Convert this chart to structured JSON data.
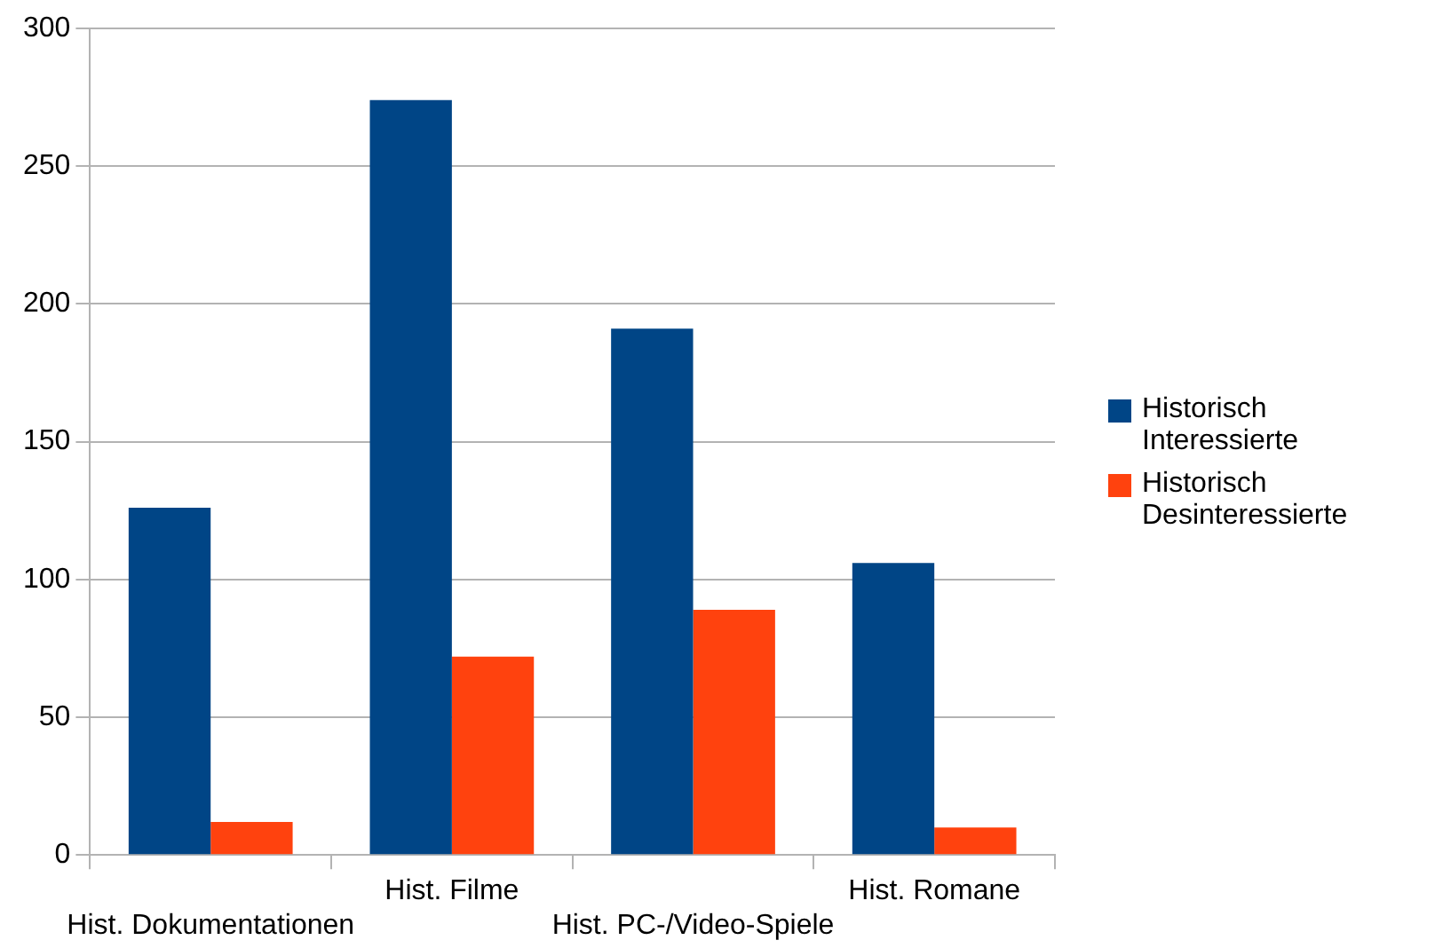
{
  "chart_data": {
    "type": "bar",
    "categories": [
      "Hist. Dokumentationen",
      "Hist. Filme",
      "Hist. PC-/Video-Spiele",
      "Hist. Romane"
    ],
    "series": [
      {
        "name": "Historisch Interessierte",
        "color": "#004586",
        "values": [
          126,
          274,
          191,
          106
        ]
      },
      {
        "name": "Historisch Desinteressierte",
        "color": "#ff420e",
        "values": [
          12,
          72,
          89,
          10
        ]
      }
    ],
    "ylim": [
      0,
      300
    ],
    "yticks": [
      0,
      50,
      100,
      150,
      200,
      250,
      300
    ],
    "grid": "y",
    "legend": "right"
  }
}
